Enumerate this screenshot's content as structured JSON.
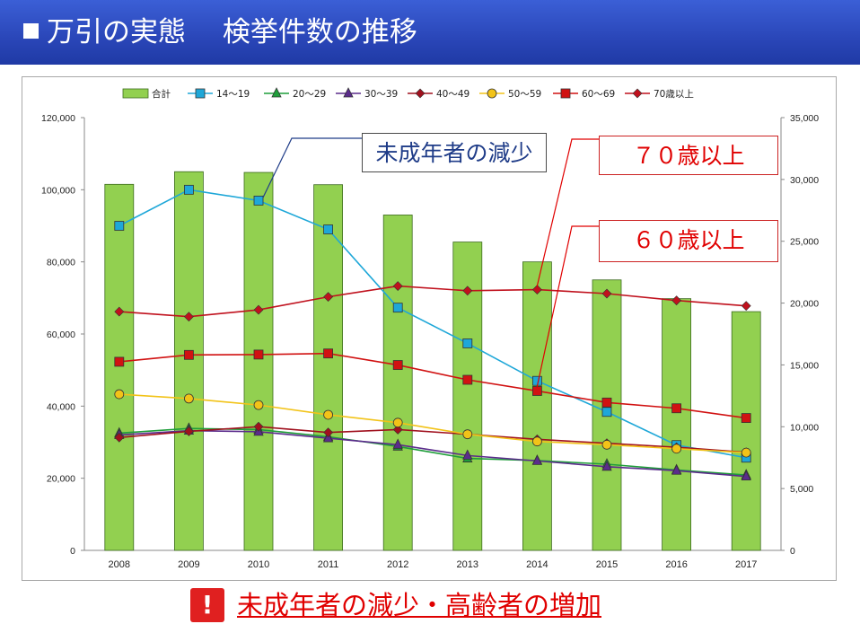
{
  "header": {
    "title": "万引の実態　 検挙件数の推移"
  },
  "callouts": {
    "minors": "未成年者の減少",
    "over70": "７０歳以上",
    "over60": "６０歳以上"
  },
  "bottom": {
    "icon": "!",
    "text": "未成年者の減少・高齢者の増加"
  },
  "chart_data": {
    "type": "bar",
    "categories": [
      "2008",
      "2009",
      "2010",
      "2011",
      "2012",
      "2013",
      "2014",
      "2015",
      "2016",
      "2017"
    ],
    "left_axis": {
      "range": [
        0,
        120000
      ],
      "ticks": [
        "0",
        "20,000",
        "40,000",
        "60,000",
        "80,000",
        "100,000",
        "120,000"
      ]
    },
    "right_axis": {
      "range": [
        0,
        35000
      ],
      "ticks": [
        "0",
        "5,000",
        "10,000",
        "15,000",
        "20,000",
        "25,000",
        "30,000",
        "35,000"
      ]
    },
    "bar_series": {
      "name": "合計",
      "color": "#92d050",
      "axis": "left",
      "values": [
        101500,
        105000,
        104800,
        101400,
        93000,
        85500,
        80000,
        75000,
        69800,
        66200
      ]
    },
    "line_series": [
      {
        "name": "14〜19",
        "color": "#1ea7d8",
        "marker": "square",
        "axis": "left",
        "values": [
          90000,
          100000,
          97000,
          89000,
          67300,
          57400,
          47000,
          38400,
          29200,
          25700
        ]
      },
      {
        "name": "20〜29",
        "color": "#1f9e3a",
        "marker": "triangle",
        "axis": "left",
        "values": [
          32500,
          33800,
          33500,
          31500,
          28800,
          25500,
          24900,
          23900,
          22300,
          20900
        ]
      },
      {
        "name": "30〜39",
        "color": "#5b2c8c",
        "marker": "triangle",
        "axis": "left",
        "values": [
          32000,
          33200,
          32900,
          31100,
          29300,
          26300,
          24800,
          23200,
          22100,
          20500
        ]
      },
      {
        "name": "40〜49",
        "color": "#a0111e",
        "marker": "diamond",
        "axis": "left",
        "values": [
          31300,
          33000,
          34300,
          32700,
          33500,
          32200,
          30800,
          29700,
          28600,
          27200
        ]
      },
      {
        "name": "50〜59",
        "color": "#f2c318",
        "marker": "circle",
        "axis": "left",
        "values": [
          43300,
          42100,
          40300,
          37600,
          35400,
          32200,
          30200,
          29300,
          28200,
          27100
        ]
      },
      {
        "name": "60〜69",
        "color": "#d11212",
        "marker": "square",
        "axis": "left",
        "values": [
          52300,
          54200,
          54300,
          54600,
          51400,
          47300,
          44200,
          41000,
          39400,
          36700
        ]
      },
      {
        "name": "70歳以上",
        "color": "#c0111d",
        "marker": "diamond",
        "axis": "left",
        "values": [
          66200,
          64800,
          66700,
          70300,
          73300,
          72000,
          72300,
          71200,
          69300,
          67800
        ]
      }
    ]
  }
}
